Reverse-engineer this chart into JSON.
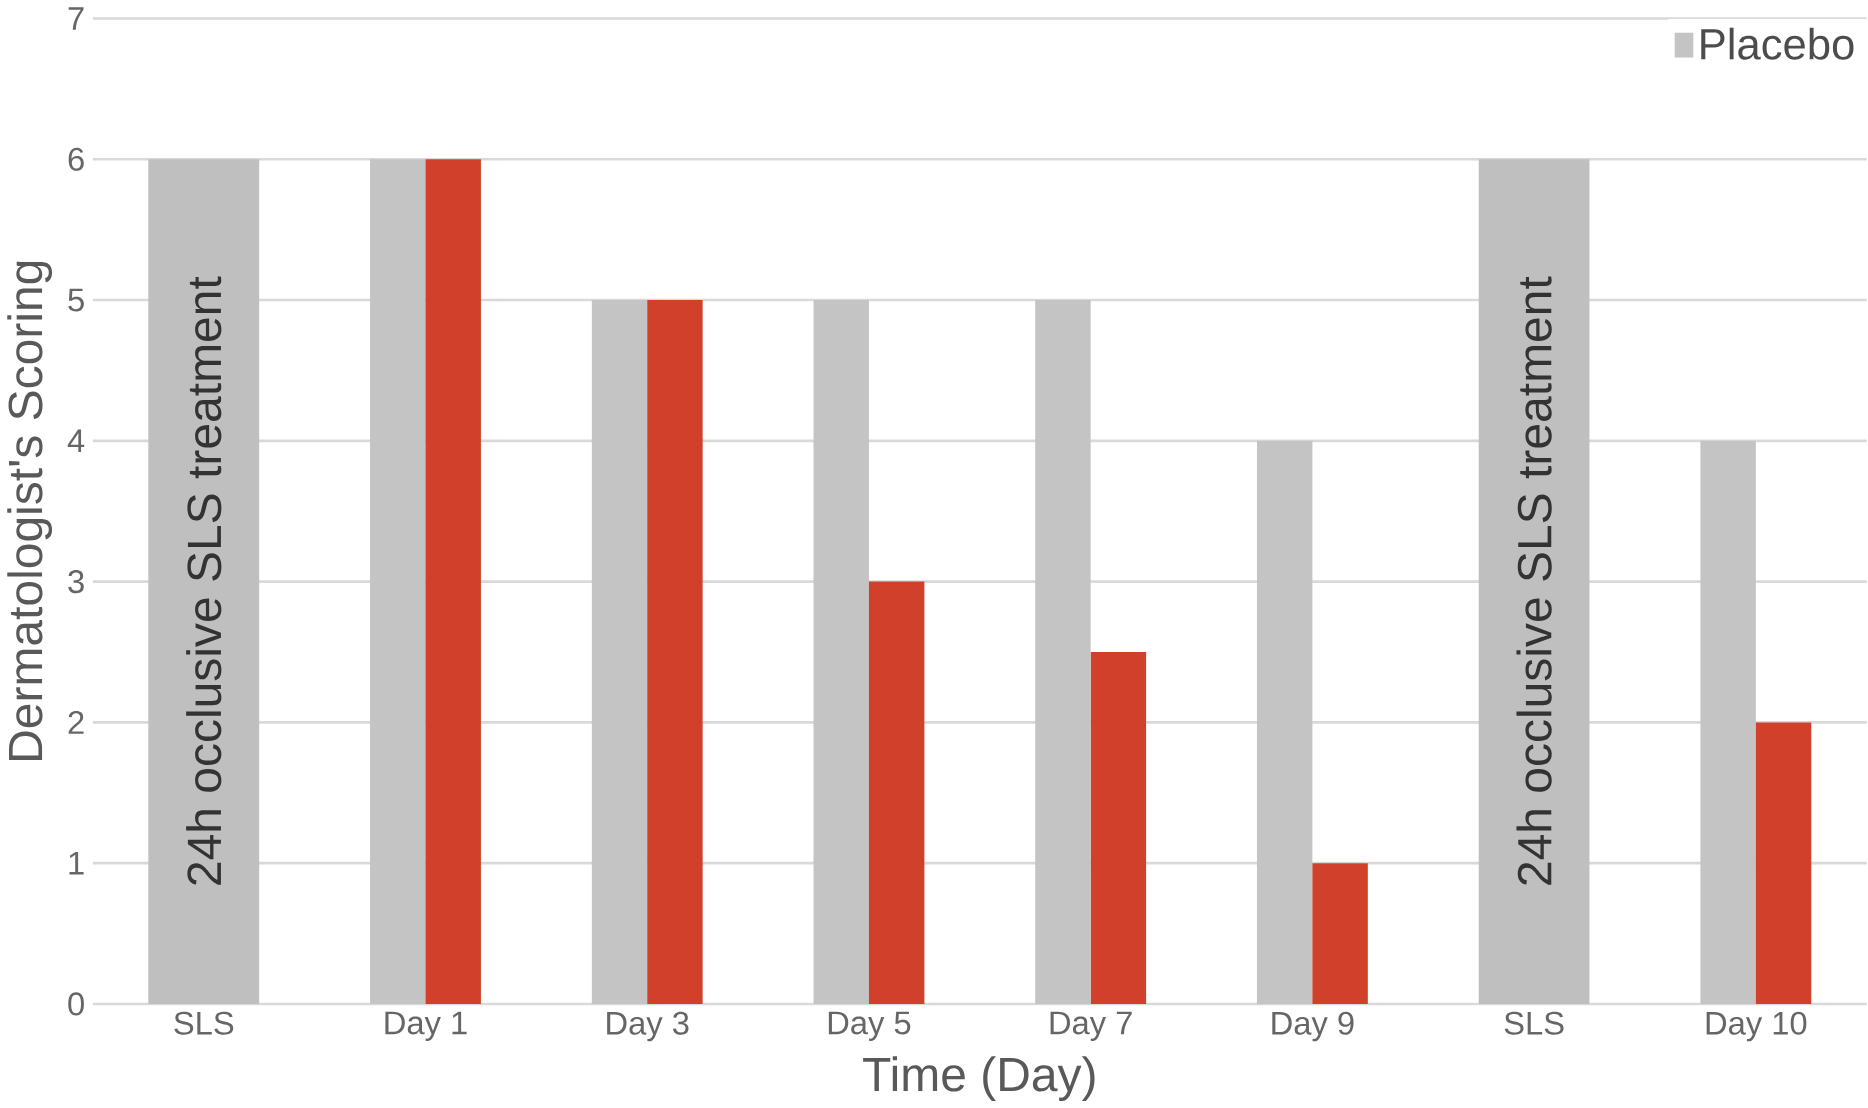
{
  "chart_data": {
    "type": "bar",
    "ylabel": "Dermatologist's Scoring",
    "xlabel": "Time (Day)",
    "categories": [
      "SLS",
      "Day 1",
      "Day 3",
      "Day 5",
      "Day 7",
      "Day 9",
      "SLS",
      "Day 10"
    ],
    "series": [
      {
        "name": "Placebo",
        "color": "#c4c4c4",
        "values": [
          null,
          6,
          5,
          5,
          5,
          4,
          null,
          4
        ]
      },
      {
        "color": "#d0402a",
        "values": [
          null,
          6,
          5,
          3,
          2.5,
          1,
          null,
          2
        ]
      },
      {
        "color": "#bfbfbf",
        "values": [
          6,
          null,
          null,
          null,
          null,
          null,
          6,
          null
        ]
      }
    ],
    "annotations": [
      "24h occlusive SLS treatment",
      "24h occlusive SLS treatment"
    ],
    "ylim": [
      0,
      7
    ],
    "yticks": [
      0,
      1,
      2,
      3,
      4,
      5,
      6,
      7
    ],
    "grid": "y",
    "legend": "top right"
  }
}
